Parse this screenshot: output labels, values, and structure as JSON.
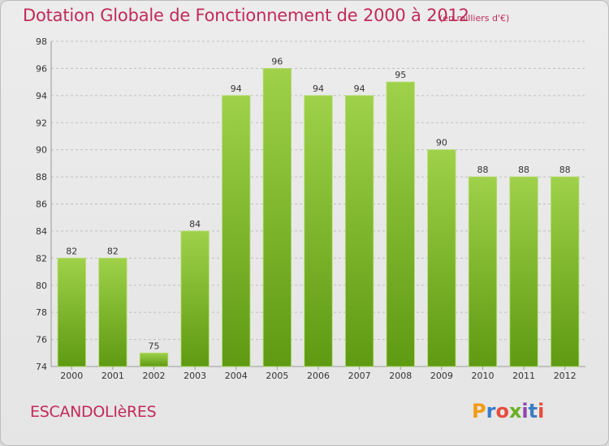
{
  "header": {
    "title": "Dotation Globale de Fonctionnement de 2000 à 2012",
    "unit_note": "(en milliers d'€)"
  },
  "footer": {
    "commune": "ESCANDOLIèRES",
    "logo_text": "Proxiti",
    "logo_colors": [
      "#f39c12",
      "#3a7dc9",
      "#e74c3c",
      "#6ab023",
      "#8e44ad",
      "#3a7dc9",
      "#e74c3c"
    ]
  },
  "colors": {
    "bar_top": "#9fd14a",
    "bar_bottom": "#5e9a12",
    "text_accent": "#c22a5a",
    "axis_text": "#333333",
    "grid": "#bfbfbf"
  },
  "chart_data": {
    "type": "bar",
    "title": "Dotation Globale de Fonctionnement de 2000 à 2012",
    "subtitle": "(en milliers d'€)",
    "xlabel": "",
    "ylabel": "",
    "categories": [
      "2000",
      "2001",
      "2002",
      "2003",
      "2004",
      "2005",
      "2006",
      "2007",
      "2008",
      "2009",
      "2010",
      "2011",
      "2012"
    ],
    "values": [
      82,
      82,
      75,
      84,
      94,
      96,
      94,
      94,
      95,
      90,
      88,
      88,
      88
    ],
    "data_labels": [
      "82",
      "82",
      "75",
      "84",
      "94",
      "96",
      "94",
      "94",
      "95",
      "90",
      "88",
      "88",
      "88"
    ],
    "ylim": [
      74,
      98
    ],
    "yticks": [
      74,
      76,
      78,
      80,
      82,
      84,
      86,
      88,
      90,
      92,
      94,
      96,
      98
    ],
    "grid": true,
    "legend": "none"
  }
}
